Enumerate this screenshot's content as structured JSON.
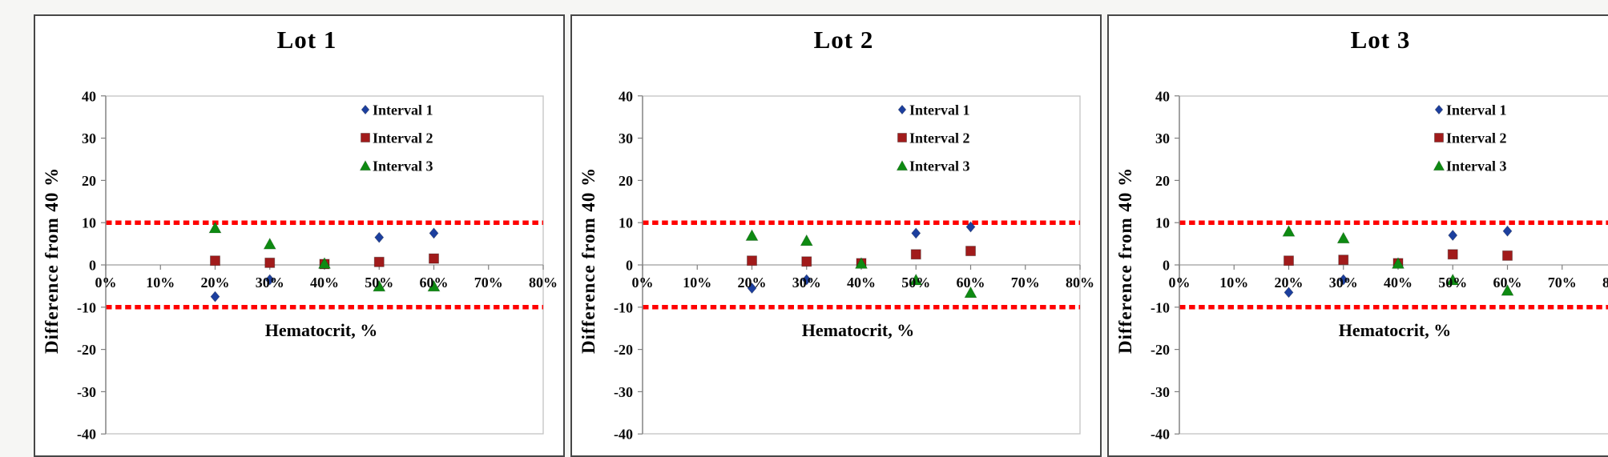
{
  "page": {
    "background": "#ffffff"
  },
  "colors": {
    "interval1": "#1C3F9E",
    "interval2": "#A11B1B",
    "interval3": "#0E8A12",
    "limit_line": "#FF0000",
    "axis_line": "#9E9E9E",
    "plot_frame": "#C2C2C2",
    "tick_mark": "#7F7F7F",
    "panel_border": "#474747",
    "text": "#0A0A0A"
  },
  "axis": {
    "ylabel": "Difference from 40 %",
    "xlabel": "Hematocrit, %",
    "ylim": [
      -40,
      40
    ],
    "xlim": [
      0,
      80
    ],
    "yticks": [
      40,
      30,
      20,
      10,
      0,
      -10,
      -20,
      -30,
      -40
    ],
    "xtick_values": [
      0,
      10,
      20,
      30,
      40,
      50,
      60,
      70,
      80
    ],
    "xtick_labels": [
      "0%",
      "10%",
      "20%",
      "30%",
      "40%",
      "50%",
      "60%",
      "70%",
      "80%"
    ],
    "upper_limit": 10,
    "lower_limit": -10,
    "grid": false,
    "legend_position": "top-right-inside"
  },
  "legend": [
    {
      "label": "Interval 1",
      "marker": "diamond",
      "color_key": "interval1"
    },
    {
      "label": "Interval 2",
      "marker": "square",
      "color_key": "interval2"
    },
    {
      "label": "Interval 3",
      "marker": "triangle",
      "color_key": "interval3"
    }
  ],
  "chart_data": [
    {
      "type": "scatter",
      "title": "Lot 1",
      "series": [
        {
          "name": "Interval 1",
          "marker": "diamond",
          "color_key": "interval1",
          "points": [
            [
              20,
              -7.5
            ],
            [
              30,
              -3.5
            ],
            [
              50,
              6.5
            ],
            [
              60,
              7.5
            ]
          ]
        },
        {
          "name": "Interval 2",
          "marker": "square",
          "color_key": "interval2",
          "points": [
            [
              20,
              1.0
            ],
            [
              30,
              0.5
            ],
            [
              40,
              0.2
            ],
            [
              50,
              0.7
            ],
            [
              60,
              1.5
            ]
          ]
        },
        {
          "name": "Interval 3",
          "marker": "triangle",
          "color_key": "interval3",
          "points": [
            [
              20,
              8.8
            ],
            [
              30,
              5.0
            ],
            [
              40,
              0.4
            ],
            [
              50,
              -5.0
            ],
            [
              60,
              -5.0
            ]
          ]
        }
      ]
    },
    {
      "type": "scatter",
      "title": "Lot 2",
      "series": [
        {
          "name": "Interval 1",
          "marker": "diamond",
          "color_key": "interval1",
          "points": [
            [
              20,
              -5.5
            ],
            [
              30,
              -3.5
            ],
            [
              50,
              7.5
            ],
            [
              60,
              9.0
            ]
          ]
        },
        {
          "name": "Interval 2",
          "marker": "square",
          "color_key": "interval2",
          "points": [
            [
              20,
              1.0
            ],
            [
              30,
              0.8
            ],
            [
              40,
              0.4
            ],
            [
              50,
              2.5
            ],
            [
              60,
              3.3
            ]
          ]
        },
        {
          "name": "Interval 3",
          "marker": "triangle",
          "color_key": "interval3",
          "points": [
            [
              20,
              7.0
            ],
            [
              30,
              5.8
            ],
            [
              40,
              0.4
            ],
            [
              50,
              -3.5
            ],
            [
              60,
              -6.5
            ]
          ]
        }
      ]
    },
    {
      "type": "scatter",
      "title": "Lot 3",
      "series": [
        {
          "name": "Interval 1",
          "marker": "diamond",
          "color_key": "interval1",
          "points": [
            [
              20,
              -6.5
            ],
            [
              30,
              -3.5
            ],
            [
              50,
              7.0
            ],
            [
              60,
              8.0
            ]
          ]
        },
        {
          "name": "Interval 2",
          "marker": "square",
          "color_key": "interval2",
          "points": [
            [
              20,
              1.0
            ],
            [
              30,
              1.2
            ],
            [
              40,
              0.4
            ],
            [
              50,
              2.5
            ],
            [
              60,
              2.2
            ]
          ]
        },
        {
          "name": "Interval 3",
          "marker": "triangle",
          "color_key": "interval3",
          "points": [
            [
              20,
              8.0
            ],
            [
              30,
              6.4
            ],
            [
              40,
              0.4
            ],
            [
              50,
              -3.5
            ],
            [
              60,
              -6.0
            ]
          ]
        }
      ]
    }
  ]
}
